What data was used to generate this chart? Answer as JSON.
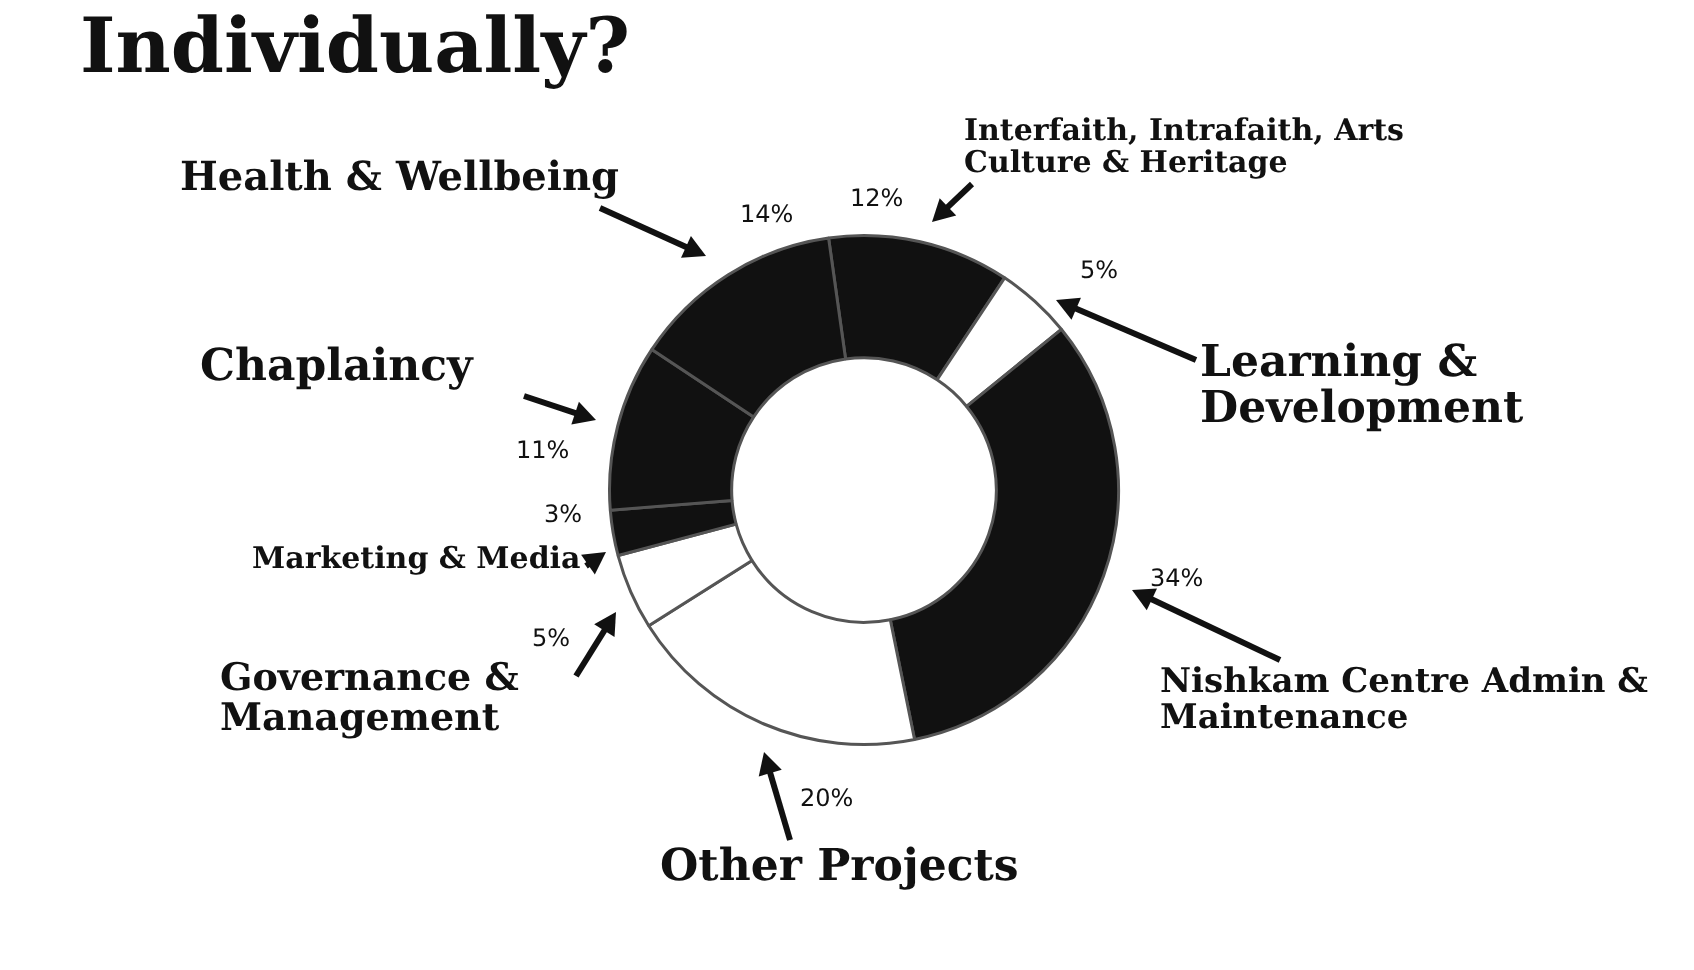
{
  "chart_data": {
    "type": "donut",
    "title": "Individually?",
    "categories": [
      "Interfaith, Intrafaith, Arts Culture & Heritage",
      "Learning & Development",
      "Nishkam Centre Admin & Maintenance",
      "Other Projects",
      "Governance & Management",
      "Marketing & Media",
      "Chaplaincy",
      "Health & Wellbeing"
    ],
    "values": [
      12,
      5,
      34,
      20,
      5,
      3,
      11,
      14
    ],
    "value_labels": [
      "12%",
      "5%",
      "34%",
      "20%",
      "5%",
      "3%",
      "11%",
      "14%"
    ],
    "colors": [
      "#111111",
      "#ffffff",
      "#111111",
      "#ffffff",
      "#ffffff",
      "#111111",
      "#111111",
      "#111111"
    ]
  }
}
